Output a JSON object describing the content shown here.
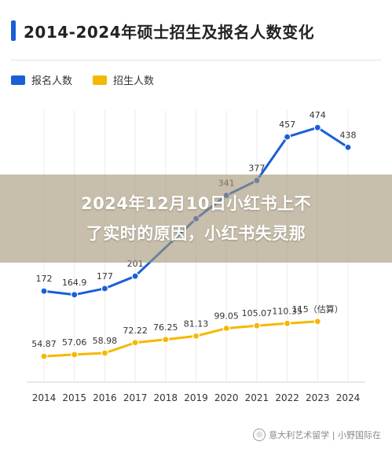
{
  "chart_data": {
    "type": "line",
    "title": "2014-2024年硕士招生及报名人数变化",
    "categories": [
      "2014",
      "2015",
      "2016",
      "2017",
      "2018",
      "2019",
      "2020",
      "2021",
      "2022",
      "2023",
      "2024"
    ],
    "series": [
      {
        "name": "报名人数",
        "color": "#1a5fd6",
        "values": [
          172,
          164.9,
          177,
          201,
          null,
          290,
          341,
          377,
          457,
          474,
          438
        ],
        "labels": [
          "172",
          "164.9",
          "177",
          "201",
          "",
          "",
          "341",
          "377",
          "457",
          "474",
          "438"
        ]
      },
      {
        "name": "招生人数",
        "color": "#f5b800",
        "values": [
          54.87,
          57.06,
          58.98,
          72.22,
          76.25,
          81.13,
          99.05,
          105.07,
          110.35,
          115,
          null
        ],
        "labels": [
          "54.87",
          "57.06",
          "58.98",
          "72.22",
          "76.25",
          "81.13",
          "99.05",
          "105.07",
          "110.35",
          "115（估算）",
          ""
        ]
      }
    ],
    "legend_position": "top-left",
    "grid": "vertical"
  },
  "overlay": {
    "line1": "2024年12月10日小红书上不",
    "line2": "了实时的原因，小红书失灵那"
  },
  "watermark": {
    "text": "意大利艺术留学 | 小野国际在"
  }
}
